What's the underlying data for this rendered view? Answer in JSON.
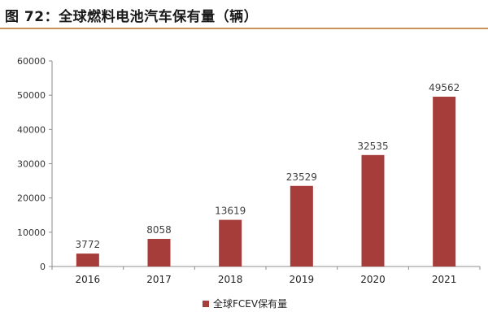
{
  "figure": {
    "title": "图 72：全球燃料电池汽车保有量（辆）"
  },
  "chart_data": {
    "type": "bar",
    "categories": [
      "2016",
      "2017",
      "2018",
      "2019",
      "2020",
      "2021"
    ],
    "series": [
      {
        "name": "全球FCEV保有量",
        "values": [
          3772,
          8058,
          13619,
          23529,
          32535,
          49562
        ],
        "color": "#a63d3a"
      }
    ],
    "ylim": [
      0,
      60000
    ],
    "yticks": [
      "0",
      "10000",
      "20000",
      "30000",
      "40000",
      "50000",
      "60000"
    ],
    "data_labels": [
      "3772",
      "8058",
      "13619",
      "23529",
      "32535",
      "49562"
    ],
    "grid": false,
    "legend": "bottom-center"
  }
}
